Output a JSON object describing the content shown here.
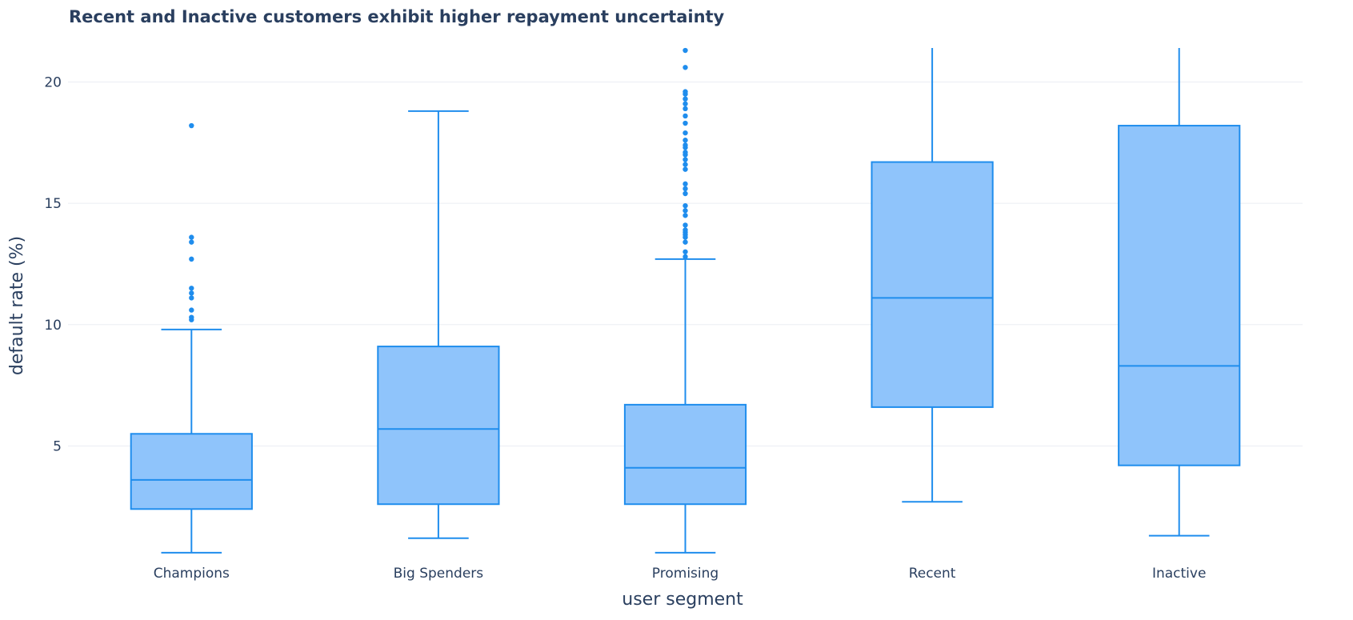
{
  "chart_data": {
    "type": "box",
    "title": "Recent and Inactive customers exhibit higher repayment uncertainty",
    "xlabel": "user segment",
    "ylabel": "default rate (%)",
    "ylim": [
      0.3,
      21.4
    ],
    "yticks": [
      5,
      10,
      15,
      20
    ],
    "grid": true,
    "colors": {
      "fill": "#8fc4fb",
      "line": "#1f8ded",
      "text": "#2a3f5f",
      "grid": "#ebeef3"
    },
    "categories": [
      "Champions",
      "Big Spenders",
      "Promising",
      "Recent",
      "Inactive"
    ],
    "boxes": [
      {
        "name": "Champions",
        "lower_whisker": 0.6,
        "q1": 2.4,
        "median": 3.6,
        "q3": 5.5,
        "upper_whisker": 9.8,
        "outliers": [
          10.2,
          10.3,
          10.6,
          11.1,
          11.3,
          11.5,
          12.7,
          13.4,
          13.6,
          18.2
        ]
      },
      {
        "name": "Big Spenders",
        "lower_whisker": 1.2,
        "q1": 2.6,
        "median": 5.7,
        "q3": 9.1,
        "upper_whisker": 18.8,
        "outliers": []
      },
      {
        "name": "Promising",
        "lower_whisker": 0.6,
        "q1": 2.6,
        "median": 4.1,
        "q3": 6.7,
        "upper_whisker": 12.7,
        "outliers": [
          12.8,
          13.0,
          13.4,
          13.6,
          13.7,
          13.8,
          13.9,
          14.1,
          14.5,
          14.7,
          14.9,
          15.4,
          15.6,
          15.8,
          16.4,
          16.6,
          16.8,
          17.0,
          17.1,
          17.3,
          17.4,
          17.6,
          17.9,
          18.3,
          18.6,
          18.9,
          19.1,
          19.3,
          19.5,
          19.6,
          20.6,
          21.3
        ]
      },
      {
        "name": "Recent",
        "lower_whisker": 2.7,
        "q1": 6.6,
        "median": 11.1,
        "q3": 16.7,
        "upper_whisker": 21.4,
        "outliers": []
      },
      {
        "name": "Inactive",
        "lower_whisker": 1.3,
        "q1": 4.2,
        "median": 8.3,
        "q3": 18.2,
        "upper_whisker": 21.4,
        "outliers": []
      }
    ]
  }
}
